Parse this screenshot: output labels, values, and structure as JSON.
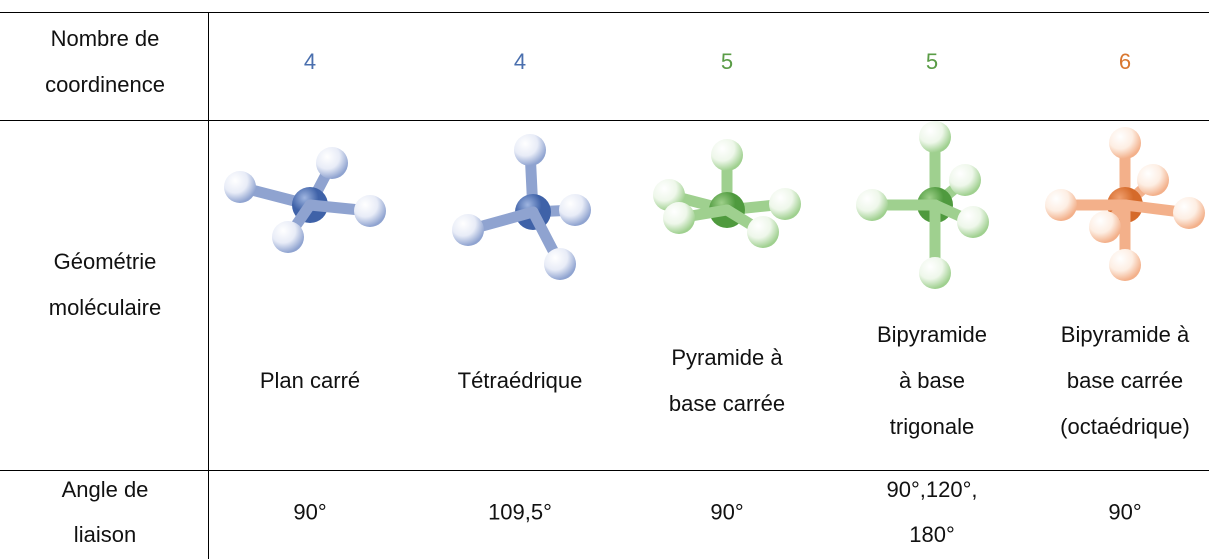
{
  "table": {
    "row_headers": [
      [
        "Nombre de",
        "coordinence"
      ],
      [
        "Géométrie",
        "moléculaire"
      ],
      [
        "Angle de",
        "liaison"
      ]
    ],
    "columns": [
      {
        "coordination": "4",
        "geometry": [
          "Plan carré"
        ],
        "angle": [
          "90°"
        ]
      },
      {
        "coordination": "4",
        "geometry": [
          "Tétraédrique"
        ],
        "angle": [
          "109,5°"
        ]
      },
      {
        "coordination": "5",
        "geometry": [
          "Pyramide à",
          "base carrée"
        ],
        "angle": [
          "90°"
        ]
      },
      {
        "coordination": "5",
        "geometry": [
          "Bipyramide",
          "à base",
          "trigonale"
        ],
        "angle": [
          "90°,120°,",
          "180°"
        ]
      },
      {
        "coordination": "6",
        "geometry": [
          "Bipyramide à",
          "base carrée",
          "(octaédrique)"
        ],
        "angle": [
          "90°"
        ]
      }
    ]
  }
}
